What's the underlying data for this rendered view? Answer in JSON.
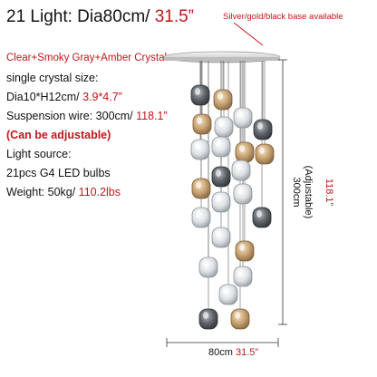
{
  "title": {
    "main": "21 Light: Dia80cm/",
    "accent": " 31.5”"
  },
  "base_note": "Silver/gold/black base available",
  "specs": {
    "color_options": "Clear+Smoky Gray+Amber Crystal",
    "crystal_size_label": "single crystal size:",
    "crystal_size_cm": "Dia10*H12cm/",
    "crystal_size_in": " 3.9*4.7”",
    "wire_label": "Suspension wire: 300cm/",
    "wire_in": " 118.1”",
    "adjustable": "(Can be adjustable)",
    "light_source_label": "Light source:",
    "bulbs": "21pcs G4 LED bulbs",
    "weight_label": "Weight: 50kg/",
    "weight_lbs": " 110.2lbs"
  },
  "dimensions": {
    "width_cm": "80cm",
    "width_in": " 31.5”",
    "height_cm": "300cm",
    "height_adj": "(Adjustable)",
    "height_in": "118.1”"
  },
  "colors": {
    "accent": "#c0161c",
    "text": "#111111"
  }
}
